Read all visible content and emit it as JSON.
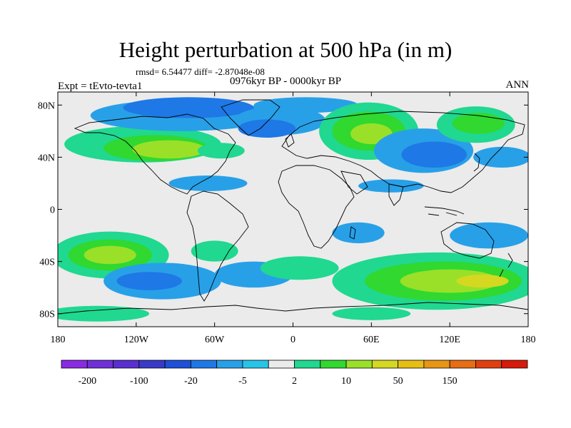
{
  "title": "Height perturbation at 500 hPa (in m)",
  "stats_line": "rmsd= 6.54477 diff= -2.87048e-08",
  "period": "0976kyr BP - 0000kyr BP",
  "experiment": "Expt = tEvto-tevta1",
  "season": "ANN",
  "axes": {
    "x_ticks": [
      {
        "value": -180,
        "label": "180"
      },
      {
        "value": -120,
        "label": "120W"
      },
      {
        "value": -60,
        "label": "60W"
      },
      {
        "value": 0,
        "label": "0"
      },
      {
        "value": 60,
        "label": "60E"
      },
      {
        "value": 120,
        "label": "120E"
      },
      {
        "value": 180,
        "label": "180"
      }
    ],
    "y_ticks": [
      {
        "value": 80,
        "label": "80N"
      },
      {
        "value": 40,
        "label": "40N"
      },
      {
        "value": 0,
        "label": "0"
      },
      {
        "value": -40,
        "label": "40S"
      },
      {
        "value": -80,
        "label": "80S"
      }
    ],
    "lon_range": [
      -180,
      180
    ],
    "lat_range": [
      -90,
      90
    ]
  },
  "colorbar": {
    "colors": [
      "#8a2be2",
      "#7030d8",
      "#5a2fd0",
      "#3a3ac8",
      "#1e50d8",
      "#1e78e6",
      "#28a0e8",
      "#28c4e8",
      "#ebebeb",
      "#20d890",
      "#30d830",
      "#9ae028",
      "#d4d820",
      "#e6be14",
      "#e69614",
      "#e66e14",
      "#e04010",
      "#d81a0a"
    ],
    "labels": [
      {
        "boundary": 1,
        "text": "-200"
      },
      {
        "boundary": 3,
        "text": "-100"
      },
      {
        "boundary": 5,
        "text": "-20"
      },
      {
        "boundary": 7,
        "text": "-5"
      },
      {
        "boundary": 9,
        "text": "2"
      },
      {
        "boundary": 11,
        "text": "10"
      },
      {
        "boundary": 13,
        "text": "50"
      },
      {
        "boundary": 15,
        "text": "150"
      }
    ]
  },
  "field_anomalies": [
    {
      "lon": -115,
      "lat": 50,
      "rx": 60,
      "ry": 14,
      "level": "pos1"
    },
    {
      "lon": -105,
      "lat": 47,
      "rx": 40,
      "ry": 10,
      "level": "pos2"
    },
    {
      "lon": -95,
      "lat": 46,
      "rx": 28,
      "ry": 7,
      "level": "pos3"
    },
    {
      "lon": -55,
      "lat": 45,
      "rx": 18,
      "ry": 6,
      "level": "pos1"
    },
    {
      "lon": -85,
      "lat": 72,
      "rx": 70,
      "ry": 12,
      "level": "neg1"
    },
    {
      "lon": -80,
      "lat": 78,
      "rx": 50,
      "ry": 8,
      "level": "neg2"
    },
    {
      "lon": -10,
      "lat": 68,
      "rx": 35,
      "ry": 11,
      "level": "neg1"
    },
    {
      "lon": -20,
      "lat": 62,
      "rx": 22,
      "ry": 7,
      "level": "neg2"
    },
    {
      "lon": 10,
      "lat": 80,
      "rx": 40,
      "ry": 6,
      "level": "neg1"
    },
    {
      "lon": 58,
      "lat": 60,
      "rx": 38,
      "ry": 22,
      "level": "pos1"
    },
    {
      "lon": 58,
      "lat": 60,
      "rx": 28,
      "ry": 15,
      "level": "pos2"
    },
    {
      "lon": 60,
      "lat": 58,
      "rx": 16,
      "ry": 8,
      "level": "pos3"
    },
    {
      "lon": 100,
      "lat": 45,
      "rx": 38,
      "ry": 17,
      "level": "neg1"
    },
    {
      "lon": 108,
      "lat": 42,
      "rx": 25,
      "ry": 10,
      "level": "neg2"
    },
    {
      "lon": 140,
      "lat": 65,
      "rx": 30,
      "ry": 14,
      "level": "pos1"
    },
    {
      "lon": 142,
      "lat": 66,
      "rx": 20,
      "ry": 8,
      "level": "pos2"
    },
    {
      "lon": 160,
      "lat": 40,
      "rx": 22,
      "ry": 8,
      "level": "neg1"
    },
    {
      "lon": -65,
      "lat": 20,
      "rx": 30,
      "ry": 6,
      "level": "neg1"
    },
    {
      "lon": 75,
      "lat": 18,
      "rx": 25,
      "ry": 5,
      "level": "neg1"
    },
    {
      "lon": -140,
      "lat": -35,
      "rx": 45,
      "ry": 18,
      "level": "pos1"
    },
    {
      "lon": -140,
      "lat": -35,
      "rx": 32,
      "ry": 12,
      "level": "pos2"
    },
    {
      "lon": -140,
      "lat": -35,
      "rx": 20,
      "ry": 7,
      "level": "pos3"
    },
    {
      "lon": -100,
      "lat": -55,
      "rx": 45,
      "ry": 14,
      "level": "neg1"
    },
    {
      "lon": -110,
      "lat": -55,
      "rx": 25,
      "ry": 7,
      "level": "neg2"
    },
    {
      "lon": -60,
      "lat": -32,
      "rx": 18,
      "ry": 8,
      "level": "pos1"
    },
    {
      "lon": -30,
      "lat": -50,
      "rx": 30,
      "ry": 10,
      "level": "neg1"
    },
    {
      "lon": 5,
      "lat": -45,
      "rx": 30,
      "ry": 9,
      "level": "pos1"
    },
    {
      "lon": 110,
      "lat": -55,
      "rx": 80,
      "ry": 22,
      "level": "pos1"
    },
    {
      "lon": 115,
      "lat": -55,
      "rx": 60,
      "ry": 15,
      "level": "pos2"
    },
    {
      "lon": 120,
      "lat": -55,
      "rx": 38,
      "ry": 9,
      "level": "pos3"
    },
    {
      "lon": 145,
      "lat": -55,
      "rx": 20,
      "ry": 5,
      "level": "pos4"
    },
    {
      "lon": 150,
      "lat": -20,
      "rx": 30,
      "ry": 10,
      "level": "neg1"
    },
    {
      "lon": 50,
      "lat": -18,
      "rx": 20,
      "ry": 8,
      "level": "neg1"
    },
    {
      "lon": -150,
      "lat": -80,
      "rx": 40,
      "ry": 6,
      "level": "pos1"
    },
    {
      "lon": 60,
      "lat": -80,
      "rx": 30,
      "ry": 5,
      "level": "pos1"
    }
  ],
  "level_colors": {
    "neg1": "#28a0e8",
    "neg2": "#1e78e6",
    "pos1": "#20d890",
    "pos2": "#30d830",
    "pos3": "#9ae028",
    "pos4": "#d4d820"
  }
}
